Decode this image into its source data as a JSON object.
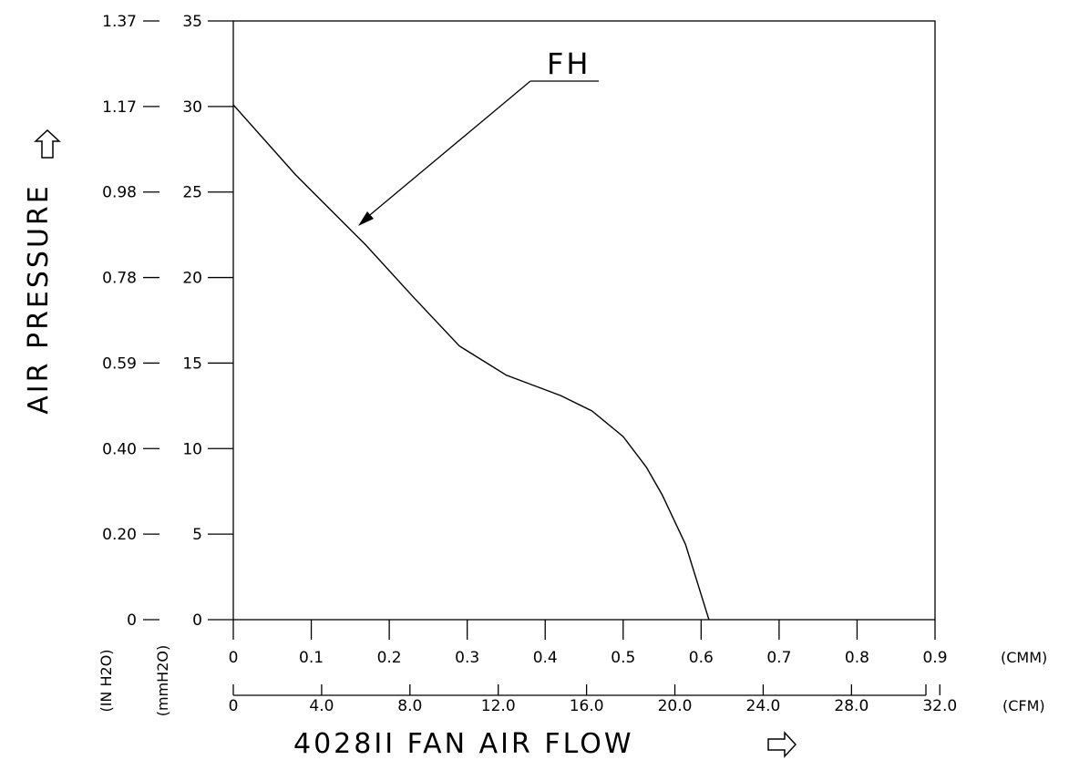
{
  "chart_data": {
    "type": "line",
    "title": "",
    "xlabel": "4028II FAN AIR FLOW",
    "ylabel": "AIR PRESSURE",
    "x_unit_primary": "(CMM)",
    "x_unit_secondary": "(CFM)",
    "y_unit_primary": "(mmH2O)",
    "y_unit_secondary": "(IN H2O)",
    "xlim": [
      0,
      0.9
    ],
    "ylim": [
      0,
      35
    ],
    "x_ticks": [
      "0",
      "0.1",
      "0.2",
      "0.3",
      "0.4",
      "0.5",
      "0.6",
      "0.7",
      "0.8",
      "0.9"
    ],
    "x_ticks_cfm": [
      "0",
      "4.0",
      "8.0",
      "12.0",
      "16.0",
      "20.0",
      "24.0",
      "28.0",
      "32.0"
    ],
    "y_ticks": [
      "0",
      "5",
      "10",
      "15",
      "20",
      "25",
      "30",
      "35"
    ],
    "y_ticks_inh2o": [
      "0",
      "0.20",
      "0.40",
      "0.59",
      "0.78",
      "0.98",
      "1.17",
      "1.37"
    ],
    "grid": false,
    "series": [
      {
        "name": "FH",
        "x": [
          0,
          0.08,
          0.17,
          0.23,
          0.29,
          0.35,
          0.42,
          0.46,
          0.5,
          0.53,
          0.55,
          0.58,
          0.61
        ],
        "y": [
          30.1,
          26.0,
          21.9,
          18.9,
          16.0,
          14.3,
          13.1,
          12.2,
          10.7,
          8.9,
          7.3,
          4.4,
          0
        ]
      }
    ],
    "annotation": "FH"
  }
}
